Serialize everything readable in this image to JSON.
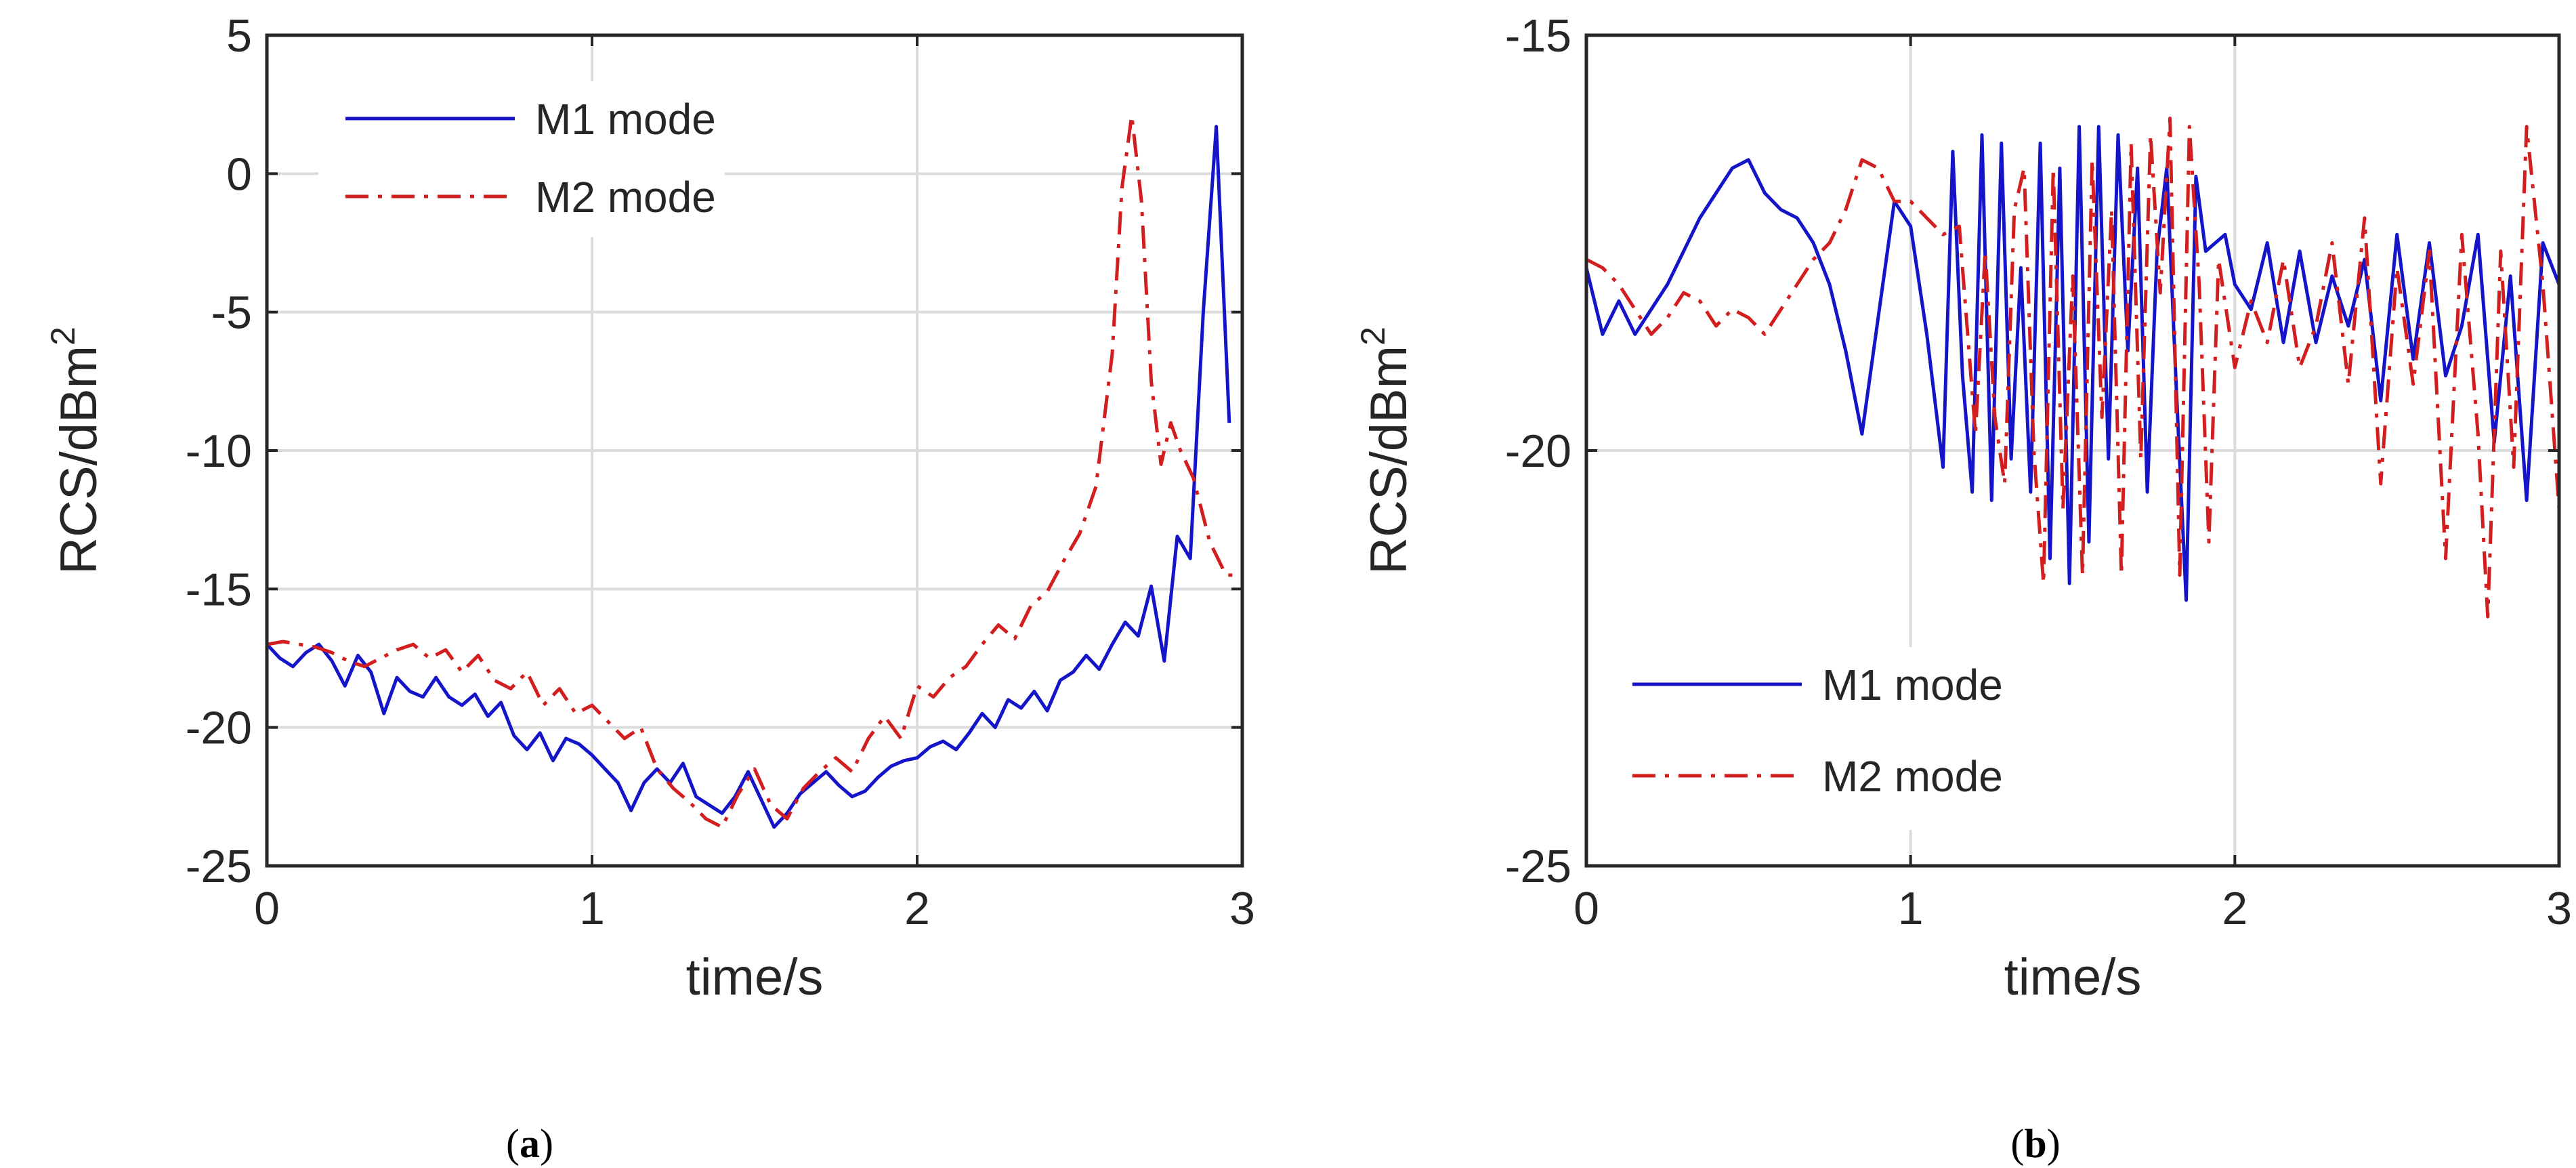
{
  "chart_data": [
    {
      "id": "a",
      "type": "line",
      "panel_label": "a",
      "title": "",
      "xlabel": "time/s",
      "ylabel": "RCS/dBm",
      "ylabel_superscript": "2",
      "xlim": [
        0,
        3
      ],
      "ylim": [
        -25,
        5
      ],
      "xticks": [
        0,
        1,
        2,
        3
      ],
      "xtick_labels": [
        "0",
        "1",
        "2",
        "3"
      ],
      "yticks": [
        -25,
        -20,
        -15,
        -10,
        -5,
        0,
        5
      ],
      "ytick_labels": [
        "-25",
        "-20",
        "-15",
        "-10",
        "-5",
        "0",
        "5"
      ],
      "grid": true,
      "legend_position": "top-left",
      "series": [
        {
          "name": "M1 mode",
          "color": "#1414c8",
          "style": "solid",
          "x": [
            0,
            0.04,
            0.08,
            0.12,
            0.16,
            0.2,
            0.24,
            0.28,
            0.32,
            0.36,
            0.4,
            0.44,
            0.48,
            0.52,
            0.56,
            0.6,
            0.64,
            0.68,
            0.72,
            0.76,
            0.8,
            0.84,
            0.88,
            0.92,
            0.96,
            1.0,
            1.04,
            1.08,
            1.12,
            1.16,
            1.2,
            1.24,
            1.28,
            1.32,
            1.36,
            1.4,
            1.44,
            1.48,
            1.52,
            1.56,
            1.6,
            1.64,
            1.68,
            1.72,
            1.76,
            1.8,
            1.84,
            1.88,
            1.92,
            1.96,
            2.0,
            2.04,
            2.08,
            2.12,
            2.16,
            2.2,
            2.24,
            2.28,
            2.32,
            2.36,
            2.4,
            2.44,
            2.48,
            2.52,
            2.56,
            2.6,
            2.64,
            2.68,
            2.72,
            2.76,
            2.8,
            2.84,
            2.88,
            2.92,
            2.96
          ],
          "y": [
            -17.0,
            -17.5,
            -17.8,
            -17.3,
            -17.0,
            -17.6,
            -18.5,
            -17.4,
            -18.0,
            -19.5,
            -18.2,
            -18.7,
            -18.9,
            -18.2,
            -18.9,
            -19.2,
            -18.8,
            -19.6,
            -19.1,
            -20.3,
            -20.8,
            -20.2,
            -21.2,
            -20.4,
            -20.6,
            -21.0,
            -21.5,
            -22.0,
            -23.0,
            -22.0,
            -21.5,
            -22.0,
            -21.3,
            -22.5,
            -22.8,
            -23.1,
            -22.5,
            -21.6,
            -22.6,
            -23.6,
            -23.1,
            -22.4,
            -22.0,
            -21.6,
            -22.1,
            -22.5,
            -22.3,
            -21.8,
            -21.4,
            -21.2,
            -21.1,
            -20.7,
            -20.5,
            -20.8,
            -20.2,
            -19.5,
            -20.0,
            -19.0,
            -19.3,
            -18.7,
            -19.4,
            -18.3,
            -18.0,
            -17.4,
            -17.9,
            -17.0,
            -16.2,
            -16.7,
            -14.9,
            -17.6,
            -13.1,
            -13.9,
            -5.0,
            1.7,
            -9.0
          ]
        },
        {
          "name": "M2 mode",
          "color": "#d21e1e",
          "style": "dashdot",
          "x": [
            0,
            0.05,
            0.1,
            0.15,
            0.2,
            0.25,
            0.3,
            0.35,
            0.4,
            0.45,
            0.5,
            0.55,
            0.6,
            0.65,
            0.7,
            0.75,
            0.8,
            0.85,
            0.9,
            0.95,
            1.0,
            1.05,
            1.1,
            1.15,
            1.2,
            1.25,
            1.3,
            1.35,
            1.4,
            1.45,
            1.5,
            1.55,
            1.6,
            1.65,
            1.7,
            1.75,
            1.8,
            1.85,
            1.9,
            1.95,
            2.0,
            2.05,
            2.1,
            2.15,
            2.2,
            2.25,
            2.3,
            2.35,
            2.4,
            2.45,
            2.5,
            2.55,
            2.6,
            2.63,
            2.66,
            2.69,
            2.72,
            2.75,
            2.78,
            2.81,
            2.85,
            2.9,
            2.95,
            3.0
          ],
          "y": [
            -17.0,
            -16.9,
            -17.0,
            -17.1,
            -17.3,
            -17.6,
            -17.8,
            -17.5,
            -17.2,
            -17.0,
            -17.5,
            -17.2,
            -18.0,
            -17.4,
            -18.3,
            -18.6,
            -18.0,
            -19.2,
            -18.6,
            -19.5,
            -19.2,
            -19.8,
            -20.4,
            -20.0,
            -21.5,
            -22.2,
            -22.7,
            -23.3,
            -23.6,
            -22.4,
            -21.5,
            -22.8,
            -23.3,
            -22.2,
            -21.6,
            -21.1,
            -21.6,
            -20.4,
            -19.6,
            -20.4,
            -18.5,
            -18.9,
            -18.2,
            -17.8,
            -17.0,
            -16.3,
            -16.8,
            -15.6,
            -15.1,
            -14.0,
            -13.0,
            -11.3,
            -6.5,
            -0.5,
            2.1,
            -1.0,
            -7.5,
            -10.5,
            -9.0,
            -10.0,
            -11.0,
            -13.3,
            -14.5,
            -14.5
          ]
        }
      ]
    },
    {
      "id": "b",
      "type": "line",
      "panel_label": "b",
      "title": "",
      "xlabel": "time/s",
      "ylabel": "RCS/dBm",
      "ylabel_superscript": "2",
      "xlim": [
        0,
        3
      ],
      "ylim": [
        -25,
        -15
      ],
      "xticks": [
        0,
        1,
        2,
        3
      ],
      "xtick_labels": [
        "0",
        "1",
        "2",
        "3"
      ],
      "yticks": [
        -25,
        -20,
        -15
      ],
      "ytick_labels": [
        "-25",
        "-20",
        "-15"
      ],
      "grid": true,
      "legend_position": "bottom-left",
      "series": [
        {
          "name": "M1 mode",
          "color": "#1414c8",
          "style": "solid",
          "x": [
            0,
            0.05,
            0.1,
            0.15,
            0.2,
            0.25,
            0.3,
            0.35,
            0.4,
            0.45,
            0.5,
            0.55,
            0.6,
            0.65,
            0.7,
            0.75,
            0.8,
            0.85,
            0.9,
            0.95,
            1.0,
            1.05,
            1.1,
            1.13,
            1.16,
            1.19,
            1.22,
            1.25,
            1.28,
            1.31,
            1.34,
            1.37,
            1.4,
            1.43,
            1.46,
            1.49,
            1.52,
            1.55,
            1.58,
            1.61,
            1.64,
            1.67,
            1.7,
            1.73,
            1.76,
            1.79,
            1.82,
            1.85,
            1.88,
            1.91,
            1.94,
            1.97,
            2.0,
            2.05,
            2.1,
            2.15,
            2.2,
            2.25,
            2.3,
            2.35,
            2.4,
            2.45,
            2.5,
            2.55,
            2.6,
            2.65,
            2.7,
            2.75,
            2.8,
            2.85,
            2.9,
            2.95,
            3.0
          ],
          "y": [
            -17.8,
            -18.6,
            -18.2,
            -18.6,
            -18.3,
            -18.0,
            -17.6,
            -17.2,
            -16.9,
            -16.6,
            -16.5,
            -16.9,
            -17.1,
            -17.2,
            -17.5,
            -18.0,
            -18.8,
            -19.8,
            -18.4,
            -17.0,
            -17.3,
            -18.6,
            -20.2,
            -16.4,
            -19.1,
            -20.5,
            -16.2,
            -20.6,
            -16.3,
            -20.1,
            -17.8,
            -20.5,
            -16.3,
            -21.3,
            -16.6,
            -21.6,
            -16.1,
            -21.1,
            -16.1,
            -20.1,
            -16.2,
            -18.8,
            -16.6,
            -20.5,
            -17.6,
            -16.6,
            -19.3,
            -21.8,
            -16.7,
            -17.6,
            -17.5,
            -17.4,
            -18.0,
            -18.3,
            -17.5,
            -18.7,
            -17.6,
            -18.7,
            -17.9,
            -18.5,
            -17.7,
            -19.4,
            -17.4,
            -18.9,
            -17.5,
            -19.1,
            -18.5,
            -17.4,
            -19.9,
            -17.9,
            -20.6,
            -17.5,
            -18.0
          ]
        },
        {
          "name": "M2 mode",
          "color": "#d21e1e",
          "style": "dashdot",
          "x": [
            0,
            0.05,
            0.1,
            0.15,
            0.2,
            0.25,
            0.3,
            0.35,
            0.4,
            0.45,
            0.5,
            0.55,
            0.6,
            0.65,
            0.7,
            0.75,
            0.8,
            0.85,
            0.9,
            0.95,
            1.0,
            1.05,
            1.1,
            1.15,
            1.2,
            1.23,
            1.26,
            1.29,
            1.32,
            1.35,
            1.38,
            1.41,
            1.44,
            1.47,
            1.5,
            1.53,
            1.56,
            1.59,
            1.62,
            1.65,
            1.68,
            1.71,
            1.74,
            1.77,
            1.8,
            1.83,
            1.86,
            1.89,
            1.92,
            1.95,
            2.0,
            2.05,
            2.1,
            2.15,
            2.2,
            2.25,
            2.3,
            2.35,
            2.4,
            2.45,
            2.5,
            2.55,
            2.6,
            2.65,
            2.7,
            2.75,
            2.78,
            2.82,
            2.86,
            2.9,
            2.95,
            3.0
          ],
          "y": [
            -17.7,
            -17.8,
            -18.0,
            -18.3,
            -18.6,
            -18.4,
            -18.1,
            -18.2,
            -18.5,
            -18.3,
            -18.4,
            -18.6,
            -18.3,
            -18.0,
            -17.7,
            -17.5,
            -17.1,
            -16.5,
            -16.6,
            -17.0,
            -17.0,
            -17.2,
            -17.4,
            -17.3,
            -19.8,
            -17.6,
            -19.6,
            -20.4,
            -17.1,
            -16.6,
            -20.0,
            -21.6,
            -16.6,
            -20.7,
            -17.9,
            -21.5,
            -16.5,
            -19.6,
            -17.1,
            -21.5,
            -16.3,
            -20.1,
            -16.2,
            -18.1,
            -16.0,
            -21.5,
            -16.1,
            -18.0,
            -21.1,
            -17.7,
            -19.0,
            -18.2,
            -18.7,
            -17.7,
            -19.0,
            -18.5,
            -17.5,
            -19.2,
            -17.2,
            -20.4,
            -17.8,
            -19.2,
            -17.6,
            -21.3,
            -17.4,
            -19.8,
            -22.0,
            -17.6,
            -20.2,
            -16.1,
            -18.0,
            -20.7
          ]
        }
      ]
    }
  ]
}
